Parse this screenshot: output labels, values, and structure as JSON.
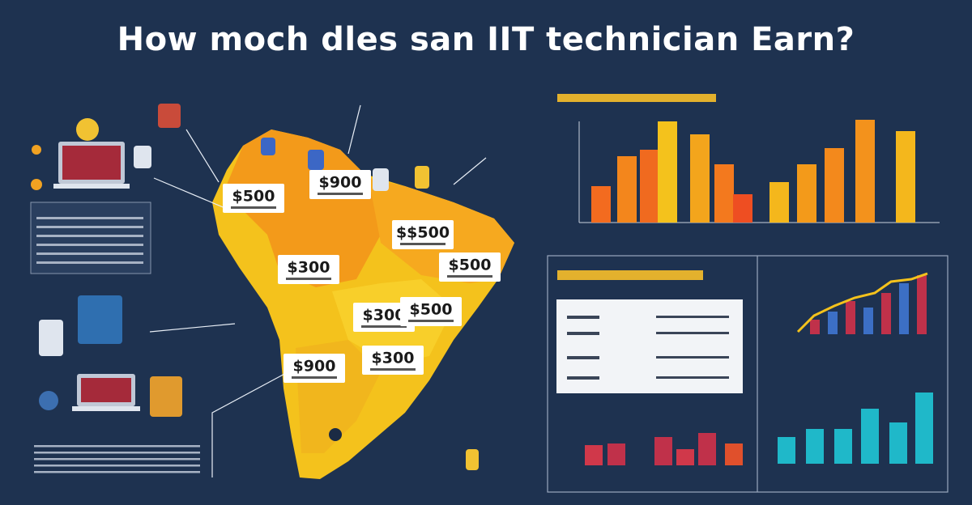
{
  "title": "How moch dles san IIT technician Earn?",
  "map": {
    "labels": [
      "$500",
      "$900",
      "$$500",
      "$300",
      "$500",
      "$300",
      "$500",
      "$900",
      "$300"
    ]
  }
}
